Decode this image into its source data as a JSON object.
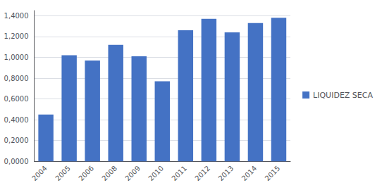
{
  "chart_data": {
    "type": "bar",
    "categories": [
      "2004",
      "2005",
      "2006",
      "2008",
      "2009",
      "2010",
      "2011",
      "2012",
      "2013",
      "2014",
      "2015"
    ],
    "series": [
      {
        "name": "LIQUIDEZ SECA",
        "color": "#4472C4",
        "values": [
          0.45,
          1.02,
          0.97,
          1.12,
          1.01,
          0.77,
          1.26,
          1.37,
          1.24,
          1.33,
          1.38
        ]
      }
    ],
    "ylim": [
      0,
      1.45
    ],
    "yticks": [
      {
        "value": 0.0,
        "label": "0,0000"
      },
      {
        "value": 0.2,
        "label": "0,2000"
      },
      {
        "value": 0.4,
        "label": "0,4000"
      },
      {
        "value": 0.6,
        "label": "0,6000"
      },
      {
        "value": 0.8,
        "label": "0,8000"
      },
      {
        "value": 1.0,
        "label": "1,0000"
      },
      {
        "value": 1.2,
        "label": "1,2000"
      },
      {
        "value": 1.4,
        "label": "1,4000"
      }
    ],
    "grid": true,
    "legend": "right"
  }
}
